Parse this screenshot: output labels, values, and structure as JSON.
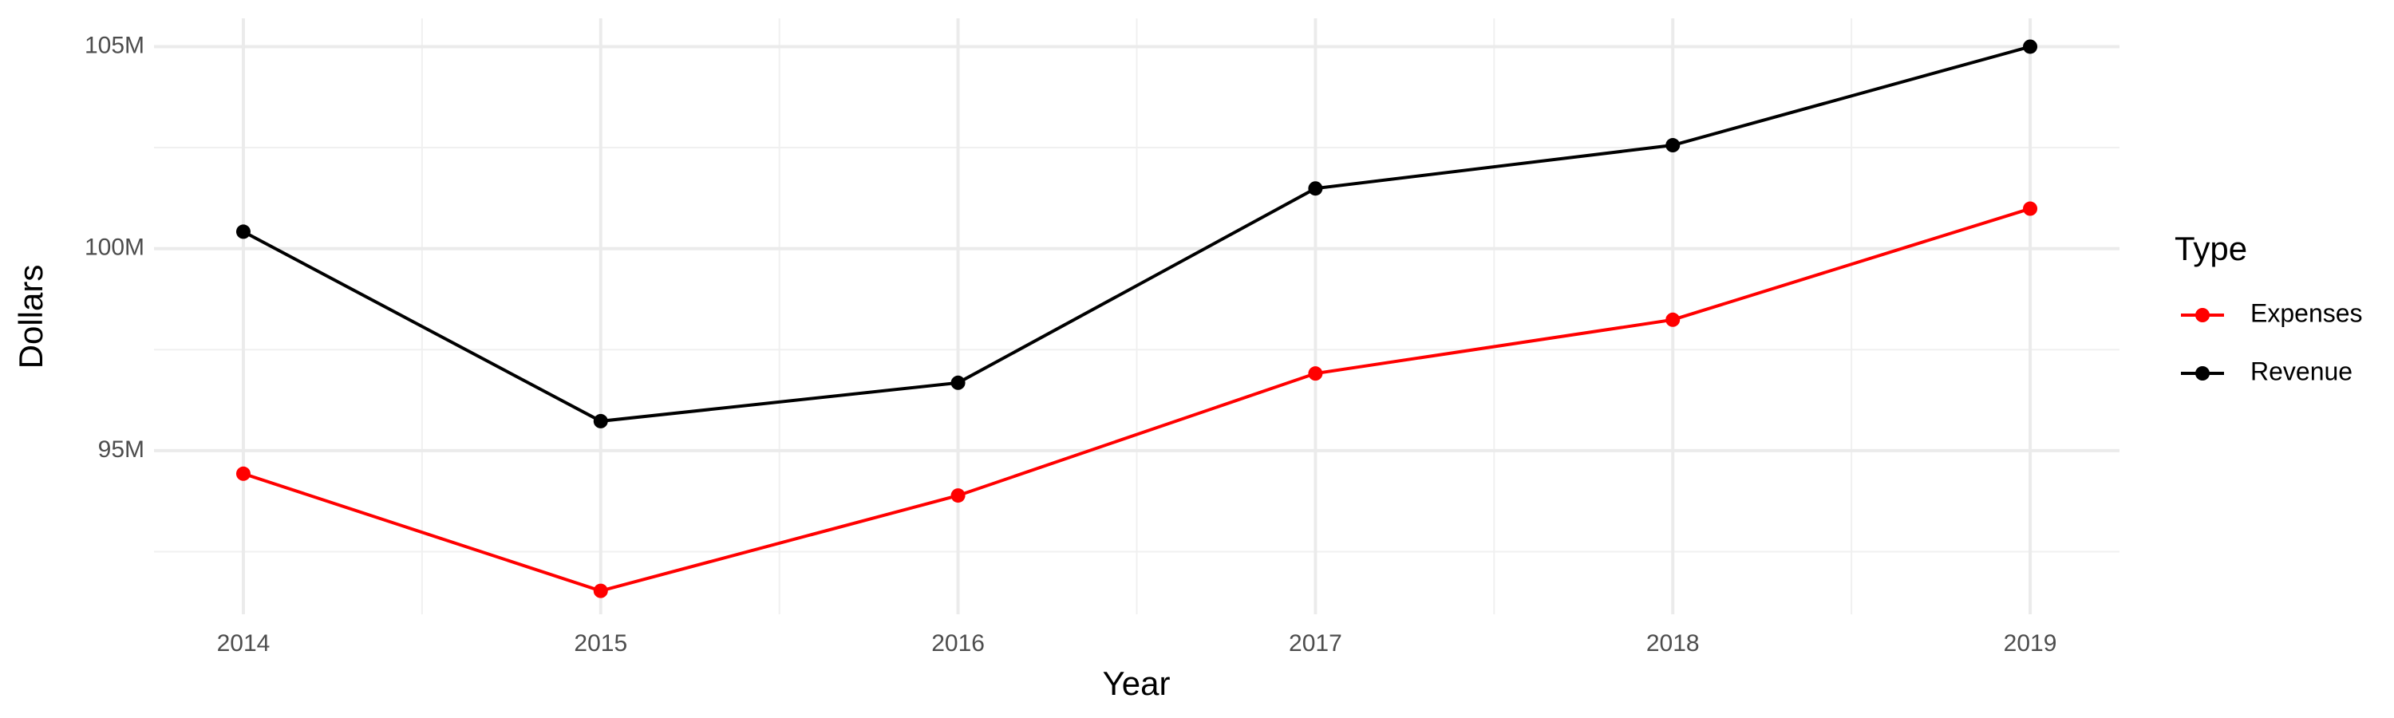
{
  "chart_data": {
    "type": "line",
    "x_label": "Year",
    "y_label": "Dollars",
    "legend_title": "Type",
    "x": [
      2014,
      2015,
      2016,
      2017,
      2018,
      2019
    ],
    "series": [
      {
        "name": "Expenses",
        "color": "#ff0000",
        "values": [
          94430000,
          91530000,
          93890000,
          96910000,
          98240000,
          100990000
        ]
      },
      {
        "name": "Revenue",
        "color": "#000000",
        "values": [
          100420000,
          95730000,
          96680000,
          101490000,
          102560000,
          105000000
        ]
      }
    ],
    "xlim": [
      2013.75,
      2019.25
    ],
    "xticks": [
      2014,
      2015,
      2016,
      2017,
      2018,
      2019
    ],
    "ylim": [
      90950000,
      105700000
    ],
    "yticks": [
      {
        "value": 95000000,
        "label": "95M"
      },
      {
        "value": 100000000,
        "label": "100M"
      },
      {
        "value": 105000000,
        "label": "105M"
      }
    ],
    "grid": true,
    "legend_position": "right"
  }
}
